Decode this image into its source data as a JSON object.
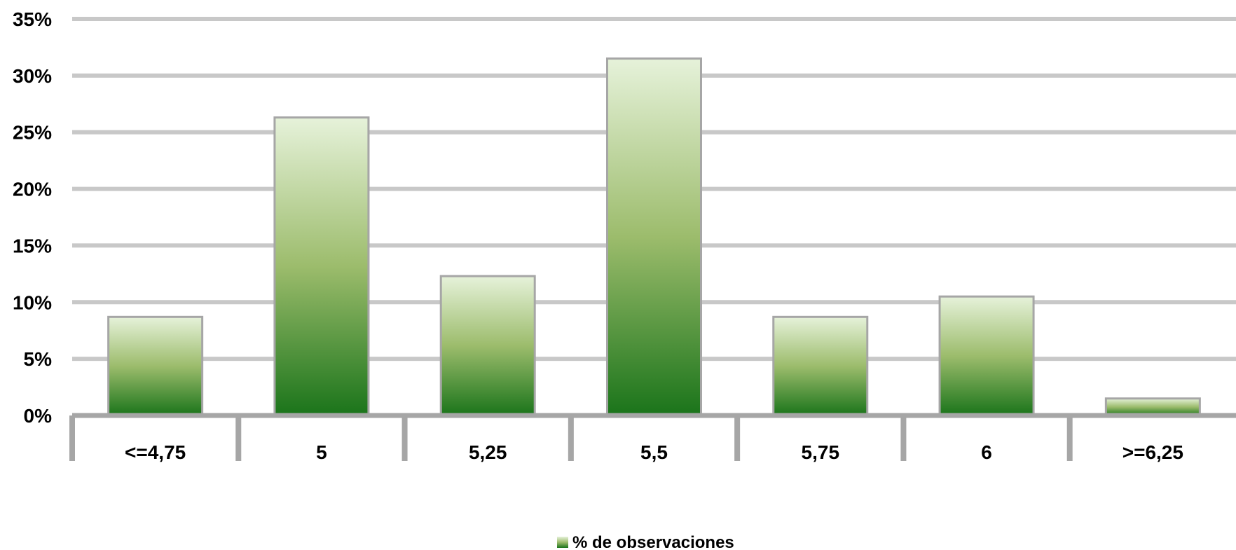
{
  "chart_data": {
    "type": "bar",
    "categories": [
      "<=4,75",
      "5",
      "5,25",
      "5,5",
      "5,75",
      "6",
      ">=6,25"
    ],
    "series": [
      {
        "name": "% de observaciones",
        "values": [
          8.7,
          26.3,
          12.3,
          31.5,
          8.7,
          10.5,
          1.5
        ]
      }
    ],
    "y_ticks": [
      "0%",
      "5%",
      "10%",
      "15%",
      "20%",
      "25%",
      "30%",
      "35%"
    ],
    "ylim": [
      0,
      35
    ],
    "grid": true,
    "legend_position": "bottom-center",
    "colors": {
      "bar_top": "#e6f2da",
      "bar_mid": "#9cbc6c",
      "bar_bottom": "#1a741a",
      "bar_border": "#a6a6a6",
      "gridline": "#c8c8c8",
      "axis": "#a6a6a6"
    }
  }
}
